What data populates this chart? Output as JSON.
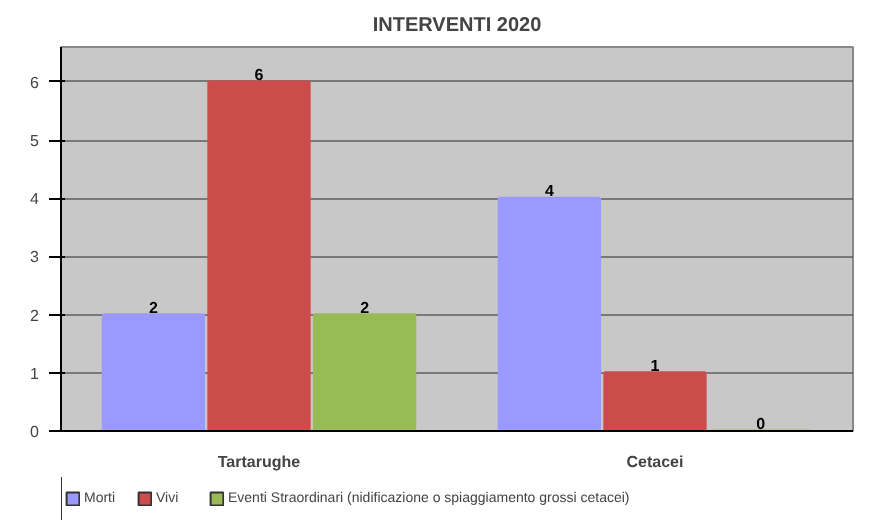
{
  "chart_data": {
    "type": "bar",
    "title": "INTERVENTI 2020",
    "categories": [
      "Tartarughe",
      "Cetacei"
    ],
    "series": [
      {
        "name": "Morti",
        "color": "#9999ff",
        "values": [
          2,
          4
        ]
      },
      {
        "name": "Vivi",
        "color": "#cc4c4c",
        "values": [
          6,
          1
        ]
      },
      {
        "name": "Eventi Straordinari (nidificazione o spiaggiamento grossi cetacei)",
        "color": "#99bb55",
        "values": [
          2,
          0
        ]
      }
    ],
    "ylim": [
      0,
      6.6
    ],
    "yticks": [
      0,
      1,
      2,
      3,
      4,
      5,
      6
    ],
    "grid": "y",
    "legend": "bottom",
    "data_labels": true
  }
}
